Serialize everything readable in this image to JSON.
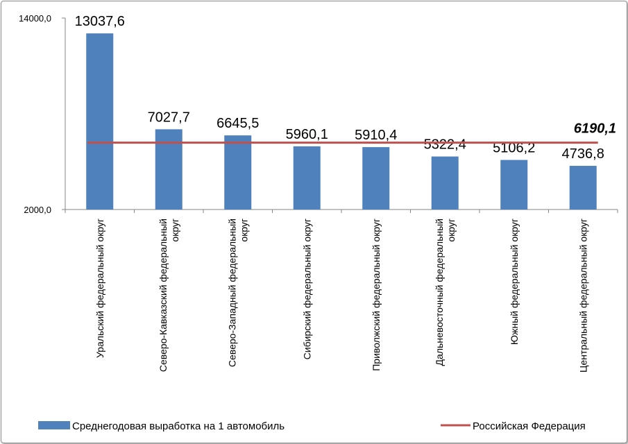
{
  "chart_data": {
    "type": "bar",
    "categories": [
      "Уральский федеральный округ",
      "Северо-Кавказский федеральный округ",
      "Северо-Западный федеральный округ",
      "Сибирский федеральный округ",
      "Приволжский федеральный округ",
      "Дальневосточный федеральный округ",
      "Южный федеральный округ",
      "Центральный федеральный округ"
    ],
    "category_lines": [
      [
        "Уральский федеральный округ"
      ],
      [
        "Северо-Кавказский федеральный",
        "округ"
      ],
      [
        "Северо-Западный федеральный",
        "округ"
      ],
      [
        "Сибирский федеральный округ"
      ],
      [
        "Приволжский федеральный округ"
      ],
      [
        "Дальневосточный федеральный",
        "округ"
      ],
      [
        "Южный федеральный округ"
      ],
      [
        "Центральный федеральный округ"
      ]
    ],
    "series": [
      {
        "name": "Среднегодовая выработка на 1 автомобиль",
        "values": [
          13037.6,
          7027.7,
          6645.5,
          5960.1,
          5910.4,
          5322.4,
          5106.2,
          4736.8
        ],
        "labels": [
          "13037,6",
          "7027,7",
          "6645,5",
          "5960,1",
          "5910,4",
          "5322,4",
          "5106,2",
          "4736,8"
        ],
        "color": "#4f81bd"
      }
    ],
    "reference_line": {
      "name": "Российская Федерация",
      "value": 6190.1,
      "label": "6190,1",
      "color": "#c0504d"
    },
    "y_ticks": [
      2000,
      14000
    ],
    "y_tick_labels": [
      "2000,0",
      "14000,0"
    ],
    "ylim": [
      2000,
      14000
    ],
    "title": "",
    "xlabel": "",
    "ylabel": "",
    "legend_position": "bottom",
    "grid": false
  }
}
